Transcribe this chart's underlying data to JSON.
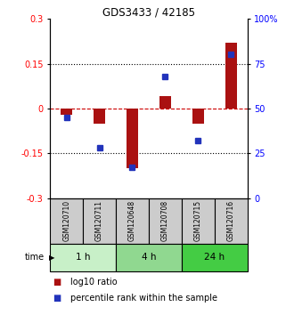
{
  "title": "GDS3433 / 42185",
  "samples": [
    "GSM120710",
    "GSM120711",
    "GSM120648",
    "GSM120708",
    "GSM120715",
    "GSM120716"
  ],
  "time_groups": [
    {
      "label": "1 h",
      "samples": [
        0,
        1
      ],
      "color": "#c8f0c8"
    },
    {
      "label": "4 h",
      "samples": [
        2,
        3
      ],
      "color": "#90d890"
    },
    {
      "label": "24 h",
      "samples": [
        4,
        5
      ],
      "color": "#44cc44"
    }
  ],
  "log10_ratio": [
    -0.02,
    -0.05,
    -0.2,
    0.04,
    -0.05,
    0.22
  ],
  "percentile_rank": [
    45,
    28,
    17,
    68,
    32,
    80
  ],
  "bar_color": "#aa1111",
  "dot_color": "#2233bb",
  "ylim_left": [
    -0.3,
    0.3
  ],
  "ylim_right": [
    0,
    100
  ],
  "yticks_left": [
    -0.3,
    -0.15,
    0,
    0.15,
    0.3
  ],
  "yticks_right": [
    0,
    25,
    50,
    75,
    100
  ],
  "hlines": [
    0.15,
    -0.15
  ],
  "hline_zero_color": "#cc0000",
  "hline_color": "#000000",
  "background_color": "#ffffff",
  "sample_box_color": "#cccccc",
  "bar_width": 0.35,
  "dot_size": 5
}
